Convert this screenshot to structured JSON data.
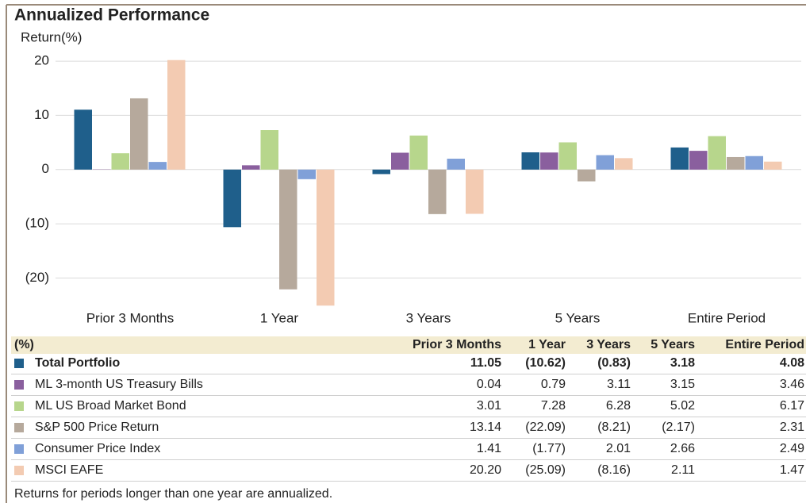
{
  "chart_data": {
    "type": "bar",
    "title": "Annualized Performance",
    "y_label": "Return(%)",
    "table_header": "(%)",
    "footnote": "Returns for periods longer than one year are annualized.",
    "categories": [
      "Prior 3 Months",
      "1 Year",
      "3 Years",
      "5 Years",
      "Entire Period"
    ],
    "ylim": [
      -25.5,
      22.5
    ],
    "yticks": [
      {
        "value": -20,
        "label": "(20)"
      },
      {
        "value": -10,
        "label": "(10)"
      },
      0,
      10,
      20
    ],
    "grid": true,
    "series": [
      {
        "name": "Total Portfolio",
        "color": "#1f5f8b",
        "values": [
          11.05,
          -10.62,
          -0.83,
          3.18,
          4.08
        ],
        "value_labels": [
          "11.05",
          "(10.62)",
          "(0.83)",
          "3.18",
          "4.08"
        ]
      },
      {
        "name": "ML 3-month US Treasury Bills",
        "color": "#8a5f9e",
        "values": [
          0.04,
          0.79,
          3.11,
          3.15,
          3.46
        ],
        "value_labels": [
          "0.04",
          "0.79",
          "3.11",
          "3.15",
          "3.46"
        ]
      },
      {
        "name": "ML US Broad Market Bond",
        "color": "#b7d68c",
        "values": [
          3.01,
          7.28,
          6.28,
          5.02,
          6.17
        ],
        "value_labels": [
          "3.01",
          "7.28",
          "6.28",
          "5.02",
          "6.17"
        ]
      },
      {
        "name": "S&P 500 Price Return",
        "color": "#b6a99c",
        "values": [
          13.14,
          -22.09,
          -8.21,
          -2.17,
          2.31
        ],
        "value_labels": [
          "13.14",
          "(22.09)",
          "(8.21)",
          "(2.17)",
          "2.31"
        ]
      },
      {
        "name": "Consumer Price Index",
        "color": "#80a0d8",
        "values": [
          1.41,
          -1.77,
          2.01,
          2.66,
          2.49
        ],
        "value_labels": [
          "1.41",
          "(1.77)",
          "2.01",
          "2.66",
          "2.49"
        ]
      },
      {
        "name": "MSCI EAFE",
        "color": "#f3cbb2",
        "values": [
          20.2,
          -25.09,
          -8.16,
          2.11,
          1.47
        ],
        "value_labels": [
          "20.20",
          "(25.09)",
          "(8.16)",
          "2.11",
          "1.47"
        ]
      }
    ]
  }
}
